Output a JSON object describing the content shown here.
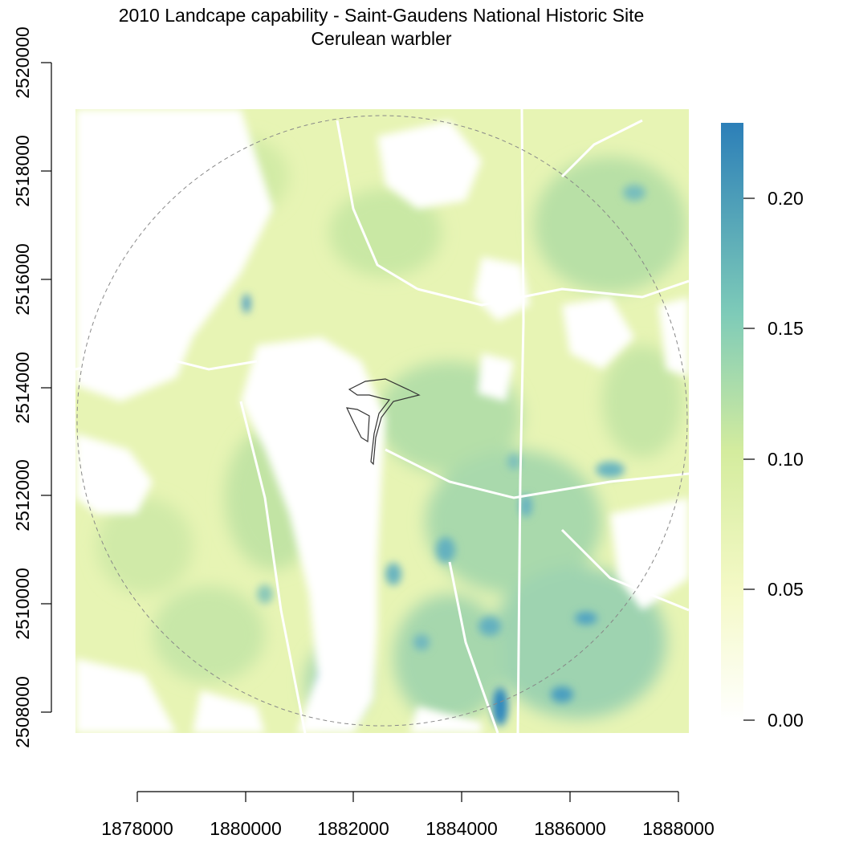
{
  "title": {
    "line1": "2010 Landcape capability - Saint-Gaudens National Historic Site",
    "line2": "Cerulean warbler"
  },
  "x_axis": {
    "ticks": [
      "1878000",
      "1880000",
      "1882000",
      "1884000",
      "1886000",
      "1888000"
    ]
  },
  "y_axis": {
    "ticks": [
      "2508000",
      "2510000",
      "2512000",
      "2514000",
      "2516000",
      "2518000",
      "2520000"
    ]
  },
  "legend": {
    "ticks": [
      "0.00",
      "0.05",
      "0.10",
      "0.15",
      "0.20"
    ],
    "colors": {
      "low": "#ffffff",
      "mid_low": "#f4f9c6",
      "mid": "#d4ec9e",
      "mid_high": "#7ecbb8",
      "high": "#2c7fb8"
    }
  },
  "map": {
    "boundary_circle": "dashed",
    "site_outline": "Saint-Gaudens National Historic Site"
  }
}
